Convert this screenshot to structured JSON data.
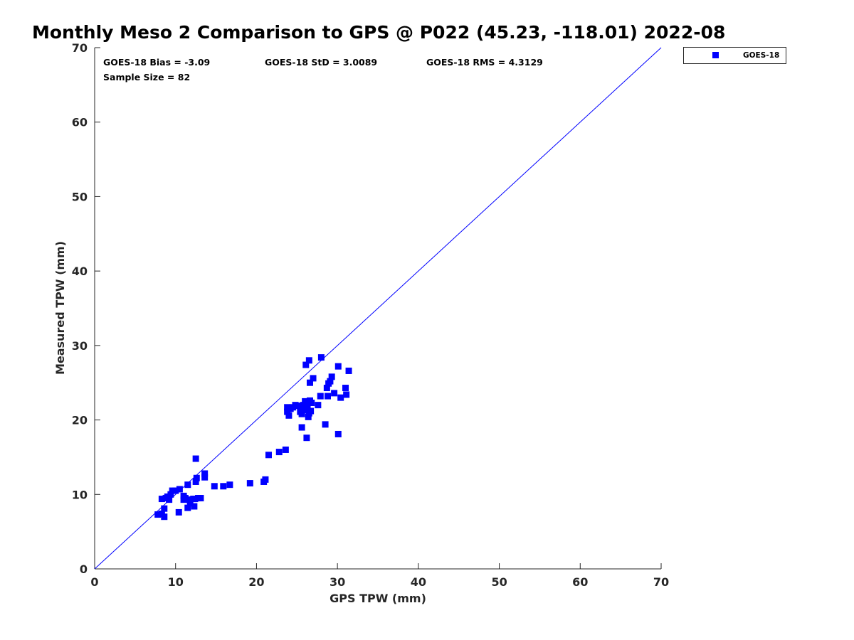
{
  "chart_data": {
    "type": "scatter",
    "title": "Monthly Meso 2 Comparison to GPS @ P022 (45.23, -118.01) 2022-08",
    "xlabel": "GPS TPW (mm)",
    "ylabel": "Measured TPW (mm)",
    "xlim": [
      0,
      70
    ],
    "ylim": [
      0,
      70
    ],
    "xticks": [
      0,
      10,
      20,
      30,
      40,
      50,
      60,
      70
    ],
    "yticks": [
      0,
      10,
      20,
      30,
      40,
      50,
      60,
      70
    ],
    "grid": false,
    "legend_position": "outside-top-right",
    "reference_line": {
      "x": [
        0,
        70
      ],
      "y": [
        0,
        70
      ],
      "color": "#0000ff"
    },
    "stats": {
      "bias": "GOES-18 Bias = -3.09",
      "std": "GOES-18 StD = 3.0089",
      "rms": "GOES-18 RMS = 4.3129",
      "sample_size": "Sample Size = 82"
    },
    "series": [
      {
        "name": "GOES-18",
        "color": "#0000ff",
        "marker": "square",
        "x": [
          7.8,
          8.3,
          8.6,
          8.6,
          8.3,
          8.8,
          9.0,
          9.2,
          9.4,
          9.6,
          10.0,
          10.5,
          10.4,
          11.0,
          11.0,
          11.2,
          11.5,
          11.5,
          11.7,
          11.8,
          12.2,
          12.4,
          12.3,
          12.5,
          12.6,
          12.5,
          12.8,
          13.1,
          13.6,
          13.6,
          14.8,
          15.9,
          16.7,
          19.2,
          20.9,
          21.1,
          21.5,
          22.8,
          23.6,
          23.8,
          23.8,
          24.0,
          24.2,
          24.5,
          24.8,
          25.2,
          25.4,
          25.6,
          25.8,
          25.9,
          26.0,
          26.1,
          26.2,
          26.3,
          26.4,
          26.5,
          26.6,
          26.6,
          26.8,
          26.7,
          27.0,
          27.6,
          27.9,
          26.1,
          26.2,
          26.5,
          25.6,
          28.0,
          28.5,
          28.7,
          28.8,
          28.9,
          29.1,
          29.3,
          29.6,
          30.1,
          30.4,
          31.0,
          31.1,
          31.4,
          30.1,
          26.0
        ],
        "y": [
          7.3,
          7.4,
          7.0,
          8.1,
          9.4,
          9.5,
          9.7,
          9.3,
          10.0,
          10.5,
          10.5,
          10.7,
          7.6,
          9.3,
          9.8,
          9.5,
          8.2,
          11.3,
          9.3,
          8.8,
          9.4,
          9.4,
          8.4,
          11.7,
          12.2,
          14.8,
          9.5,
          9.5,
          12.3,
          12.8,
          11.1,
          11.1,
          11.3,
          11.5,
          11.7,
          12.0,
          15.3,
          15.7,
          16.0,
          21.7,
          21.1,
          20.6,
          21.5,
          21.7,
          22.0,
          21.9,
          21.1,
          20.8,
          22.0,
          21.3,
          21.8,
          22.4,
          22.2,
          21.6,
          20.4,
          20.9,
          22.6,
          25.0,
          22.3,
          21.2,
          25.6,
          22.0,
          23.2,
          27.4,
          17.6,
          28.0,
          19.0,
          28.4,
          19.4,
          24.3,
          23.2,
          24.9,
          25.2,
          25.8,
          23.6,
          27.2,
          23.0,
          24.3,
          23.4,
          26.6,
          18.1,
          22.5
        ]
      }
    ]
  }
}
